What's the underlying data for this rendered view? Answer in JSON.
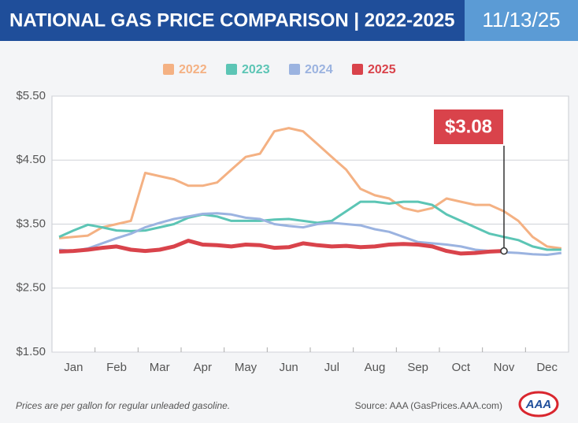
{
  "chart_data": {
    "type": "line",
    "title": "NATIONAL GAS PRICE COMPARISON | 2022-2025",
    "date": "11/13/25",
    "note": "Prices are per gallon for regular unleaded gasoline.",
    "source": "Source: AAA (GasPrices.AAA.com)",
    "logo": "AAA",
    "categories": [
      null,
      "Jan",
      null,
      null,
      "Feb",
      null,
      null,
      "Mar",
      null,
      null,
      "Apr",
      null,
      null,
      "May",
      null,
      null,
      "Jun",
      null,
      null,
      "Jul",
      null,
      null,
      "Aug",
      null,
      null,
      "Sep",
      null,
      null,
      "Oct",
      null,
      null,
      "Nov",
      null,
      null,
      "Dec",
      null
    ],
    "ylim": [
      1.5,
      5.5
    ],
    "yticks": [
      {
        "value": 1.5,
        "label": "$1.50"
      },
      {
        "value": 2.5,
        "label": "$2.50"
      },
      {
        "value": 3.5,
        "label": "$3.50"
      },
      {
        "value": 4.5,
        "label": "$4.50"
      },
      {
        "value": 5.5,
        "label": "$5.50"
      }
    ],
    "grid": true,
    "series": [
      {
        "name": "2022",
        "color": "#f4b183",
        "values": [
          3.28,
          3.3,
          3.32,
          3.45,
          3.5,
          3.55,
          4.3,
          4.25,
          4.2,
          4.1,
          4.1,
          4.15,
          4.35,
          4.55,
          4.6,
          4.95,
          5.0,
          4.95,
          4.75,
          4.55,
          4.35,
          4.05,
          3.95,
          3.9,
          3.75,
          3.7,
          3.75,
          3.9,
          3.85,
          3.8,
          3.8,
          3.7,
          3.55,
          3.3,
          3.15,
          3.12
        ]
      },
      {
        "name": "2023",
        "color": "#5cc5b5",
        "values": [
          3.3,
          3.4,
          3.49,
          3.45,
          3.4,
          3.39,
          3.4,
          3.45,
          3.5,
          3.6,
          3.65,
          3.62,
          3.55,
          3.55,
          3.55,
          3.57,
          3.58,
          3.55,
          3.52,
          3.55,
          3.7,
          3.85,
          3.85,
          3.82,
          3.85,
          3.85,
          3.8,
          3.65,
          3.55,
          3.45,
          3.35,
          3.3,
          3.25,
          3.15,
          3.1,
          3.1
        ]
      },
      {
        "name": "2024",
        "color": "#9bb3e0",
        "values": [
          3.1,
          3.08,
          3.12,
          3.2,
          3.28,
          3.35,
          3.45,
          3.52,
          3.58,
          3.62,
          3.66,
          3.67,
          3.65,
          3.6,
          3.58,
          3.5,
          3.47,
          3.45,
          3.5,
          3.52,
          3.5,
          3.48,
          3.42,
          3.38,
          3.3,
          3.22,
          3.2,
          3.18,
          3.15,
          3.1,
          3.08,
          3.06,
          3.05,
          3.03,
          3.02,
          3.05
        ]
      },
      {
        "name": "2025",
        "color": "#d9434b",
        "values": [
          3.07,
          3.08,
          3.1,
          3.13,
          3.15,
          3.1,
          3.08,
          3.1,
          3.15,
          3.24,
          3.18,
          3.17,
          3.15,
          3.18,
          3.17,
          3.13,
          3.14,
          3.2,
          3.17,
          3.15,
          3.16,
          3.14,
          3.15,
          3.18,
          3.19,
          3.18,
          3.15,
          3.08,
          3.04,
          3.05,
          3.07,
          3.08,
          null,
          null,
          null,
          null
        ],
        "value_labels": [
          null,
          null,
          null,
          null,
          null,
          null,
          null,
          null,
          null,
          null,
          null,
          null,
          null,
          null,
          null,
          null,
          null,
          null,
          null,
          null,
          null,
          null,
          null,
          null,
          null,
          null,
          null,
          null,
          null,
          null,
          null,
          "$3.08",
          null,
          null,
          null,
          null
        ]
      }
    ]
  }
}
